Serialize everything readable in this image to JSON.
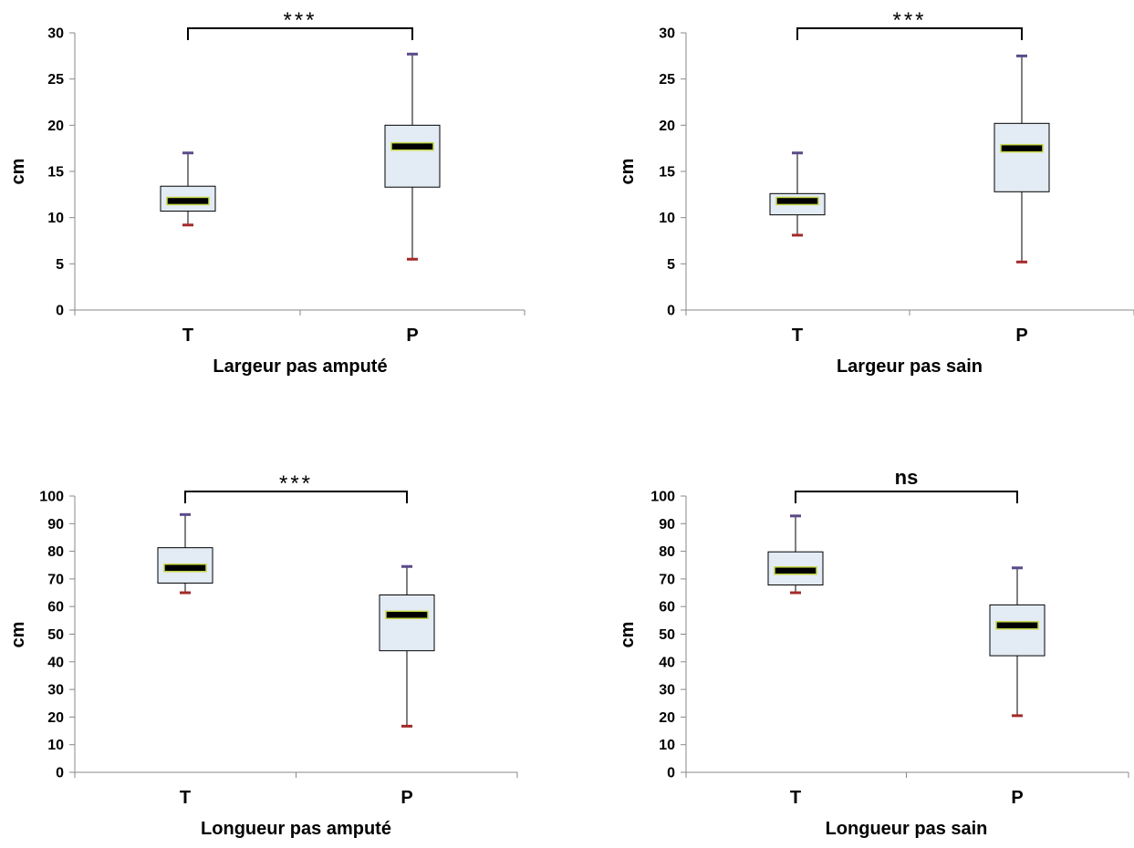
{
  "colors": {
    "box_fill": "#e3ebf5",
    "box_stroke": "#000000",
    "median_fill": "#000000",
    "median_outline": "#c8d84a",
    "max_cap": "#5b4a8a",
    "min_cap": "#a52a2a"
  },
  "chart_data": [
    {
      "type": "box",
      "categories": [
        "T",
        "P"
      ],
      "xlabel": "Largeur pas amputé",
      "ylabel": "cm",
      "ylim": [
        0,
        30
      ],
      "yticks": [
        0,
        5,
        10,
        15,
        20,
        25,
        30
      ],
      "tick_labels": [
        "0",
        "5",
        "10",
        "15",
        "20",
        "25",
        "30"
      ],
      "boxes": [
        {
          "min": 9.2,
          "q1": 10.7,
          "median": 11.8,
          "q3": 13.4,
          "max": 17.0
        },
        {
          "min": 5.5,
          "q1": 13.3,
          "median": 17.7,
          "q3": 20.0,
          "max": 27.7
        }
      ],
      "significance": "***",
      "grid": false
    },
    {
      "type": "box",
      "categories": [
        "T",
        "P"
      ],
      "xlabel": "Largeur pas sain",
      "ylabel": "cm",
      "ylim": [
        0,
        30
      ],
      "yticks": [
        0,
        5,
        10,
        15,
        20,
        25,
        30
      ],
      "tick_labels": [
        "0",
        "5",
        "10",
        "15",
        "20",
        "25",
        "30"
      ],
      "boxes": [
        {
          "min": 8.1,
          "q1": 10.3,
          "median": 11.8,
          "q3": 12.6,
          "max": 17.0
        },
        {
          "min": 5.2,
          "q1": 12.8,
          "median": 17.5,
          "q3": 20.2,
          "max": 27.5
        }
      ],
      "significance": "***",
      "grid": false
    },
    {
      "type": "box",
      "categories": [
        "T",
        "P"
      ],
      "xlabel": "Longueur pas amputé",
      "ylabel": "cm",
      "ylim": [
        0,
        100
      ],
      "yticks": [
        0,
        10,
        20,
        30,
        40,
        50,
        60,
        70,
        80,
        90,
        100
      ],
      "tick_labels": [
        "0",
        "10",
        "20",
        "30",
        "40",
        "50",
        "60",
        "70",
        "80",
        "90",
        "100"
      ],
      "boxes": [
        {
          "min": 65.0,
          "q1": 68.5,
          "median": 74.0,
          "q3": 81.3,
          "max": 93.3
        },
        {
          "min": 16.7,
          "q1": 44.0,
          "median": 57.0,
          "q3": 64.2,
          "max": 74.5
        }
      ],
      "significance": "***",
      "grid": false
    },
    {
      "type": "box",
      "categories": [
        "T",
        "P"
      ],
      "xlabel": "Longueur pas sain",
      "ylabel": "cm",
      "ylim": [
        0,
        100
      ],
      "yticks": [
        0,
        10,
        20,
        30,
        40,
        50,
        60,
        70,
        80,
        90,
        100
      ],
      "tick_labels": [
        "0",
        "10",
        "20",
        "30",
        "40",
        "50",
        "60",
        "70",
        "80",
        "90",
        "100"
      ],
      "boxes": [
        {
          "min": 65.0,
          "q1": 67.8,
          "median": 73.0,
          "q3": 79.8,
          "max": 92.8
        },
        {
          "min": 20.5,
          "q1": 42.2,
          "median": 53.2,
          "q3": 60.6,
          "max": 74.0
        }
      ],
      "significance": "ns",
      "grid": false
    }
  ]
}
